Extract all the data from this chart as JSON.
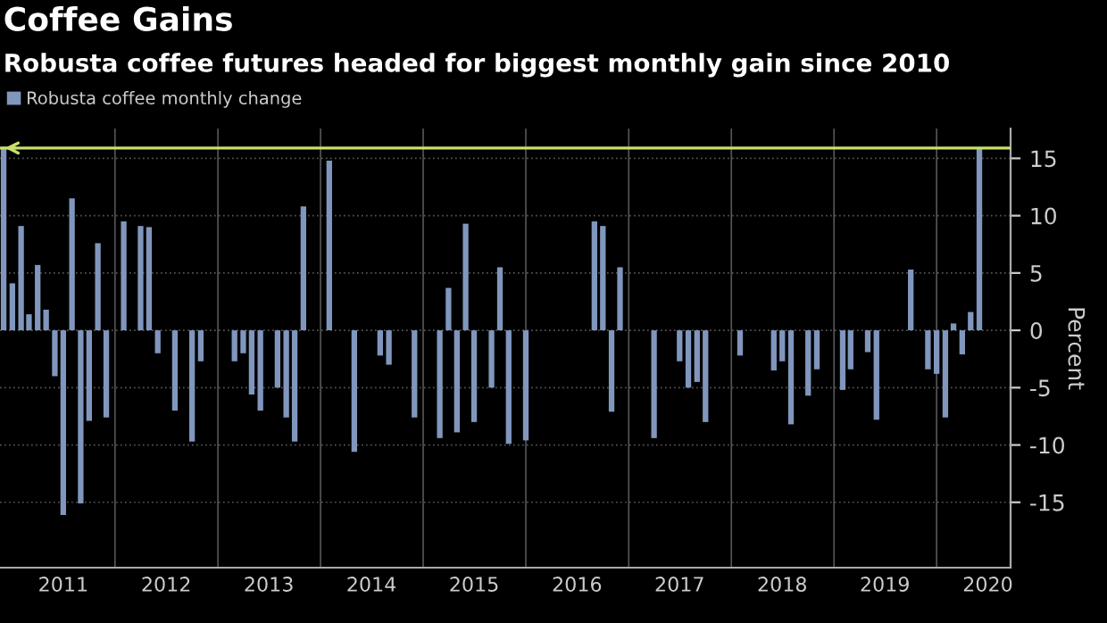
{
  "chart_data": {
    "type": "bar",
    "title": "Coffee Gains",
    "subtitle": "Robusta coffee futures headed for biggest monthly gain since 2010",
    "ylabel": "Percent",
    "x": [
      "2010-12",
      "2011-01",
      "2011-02",
      "2011-03",
      "2011-04",
      "2011-05",
      "2011-06",
      "2011-07",
      "2011-08",
      "2011-09",
      "2011-10",
      "2011-11",
      "2011-12",
      "2012-01",
      "2012-02",
      "2012-03",
      "2012-04",
      "2012-05",
      "2012-06",
      "2012-07",
      "2012-08",
      "2012-09",
      "2012-10",
      "2012-11",
      "2012-12",
      "2013-01",
      "2013-02",
      "2013-03",
      "2013-04",
      "2013-05",
      "2013-06",
      "2013-07",
      "2013-08",
      "2013-09",
      "2013-10",
      "2013-11",
      "2013-12",
      "2014-01",
      "2014-02",
      "2014-03",
      "2014-04",
      "2014-05",
      "2014-06",
      "2014-07",
      "2014-08",
      "2014-09",
      "2014-10",
      "2014-11",
      "2014-12",
      "2015-01",
      "2015-02",
      "2015-03",
      "2015-04",
      "2015-05",
      "2015-06",
      "2015-07",
      "2015-08",
      "2015-09",
      "2015-10",
      "2015-11",
      "2015-12",
      "2016-01",
      "2016-02",
      "2016-03",
      "2016-04",
      "2016-05",
      "2016-06",
      "2016-07",
      "2016-08",
      "2016-09",
      "2016-10",
      "2016-11",
      "2016-12",
      "2017-01",
      "2017-02",
      "2017-03",
      "2017-04",
      "2017-05",
      "2017-06",
      "2017-07",
      "2017-08",
      "2017-09",
      "2017-10",
      "2017-11",
      "2017-12",
      "2018-01",
      "2018-02",
      "2018-03",
      "2018-04",
      "2018-05",
      "2018-06",
      "2018-07",
      "2018-08",
      "2018-09",
      "2018-10",
      "2018-11",
      "2018-12",
      "2019-01",
      "2019-02",
      "2019-03",
      "2019-04",
      "2019-05",
      "2019-06",
      "2019-07",
      "2019-08",
      "2019-09",
      "2019-10",
      "2019-11",
      "2019-12",
      "2020-01",
      "2020-02",
      "2020-03",
      "2020-04",
      "2020-05",
      "2020-06"
    ],
    "series": [
      {
        "name": "Robusta coffee monthly change",
        "color": "#8096bd",
        "values": [
          16,
          4.1,
          9.1,
          1.4,
          5.7,
          1.8,
          -4.0,
          -16.1,
          11.5,
          -15.1,
          -7.9,
          7.6,
          -7.6,
          null,
          9.5,
          null,
          9.1,
          9.0,
          -2.0,
          null,
          -7.0,
          null,
          -9.7,
          -2.7,
          null,
          null,
          null,
          -2.7,
          -2.0,
          -5.6,
          -7.0,
          null,
          -5.0,
          -7.6,
          -9.7,
          10.8,
          null,
          null,
          14.8,
          null,
          null,
          -10.6,
          null,
          null,
          -2.2,
          -3.0,
          null,
          null,
          -7.6,
          null,
          null,
          -9.4,
          3.7,
          -8.9,
          9.3,
          -8.0,
          null,
          -5.0,
          5.5,
          -9.9,
          null,
          -9.6,
          null,
          null,
          null,
          null,
          null,
          null,
          null,
          9.5,
          9.1,
          -7.1,
          5.5,
          null,
          null,
          null,
          -9.4,
          null,
          null,
          -2.7,
          -5.0,
          -4.5,
          -8.0,
          null,
          null,
          null,
          -2.2,
          null,
          null,
          null,
          -3.5,
          -2.7,
          -8.2,
          null,
          -5.7,
          -3.4,
          null,
          null,
          -5.2,
          -3.4,
          null,
          -1.9,
          -7.8,
          null,
          null,
          null,
          5.3,
          null,
          -3.4,
          -3.8,
          -7.6,
          0.6,
          -2.1,
          1.6,
          15.9
        ]
      }
    ],
    "xlim": [
      "2010-11-18",
      "2020-09-20"
    ],
    "xticks": [
      {
        "value": "2011-07-01",
        "label": "2011"
      },
      {
        "value": "2012-01-01",
        "label": null
      },
      {
        "value": "2012-07-01",
        "label": "2012"
      },
      {
        "value": "2013-01-01",
        "label": null
      },
      {
        "value": "2013-07-01",
        "label": "2013"
      },
      {
        "value": "2014-01-01",
        "label": null
      },
      {
        "value": "2014-07-01",
        "label": "2014"
      },
      {
        "value": "2015-01-01",
        "label": null
      },
      {
        "value": "2015-07-01",
        "label": "2015"
      },
      {
        "value": "2016-01-01",
        "label": null
      },
      {
        "value": "2016-07-01",
        "label": "2016"
      },
      {
        "value": "2017-01-01",
        "label": null
      },
      {
        "value": "2017-07-01",
        "label": "2017"
      },
      {
        "value": "2018-01-01",
        "label": null
      },
      {
        "value": "2018-07-01",
        "label": "2018"
      },
      {
        "value": "2019-01-01",
        "label": null
      },
      {
        "value": "2019-07-01",
        "label": "2019"
      },
      {
        "value": "2020-01-01",
        "label": null
      },
      {
        "value": "2020-07-01",
        "label": "2020"
      }
    ],
    "ylim": [
      -20.7,
      17.6
    ],
    "yticks": [
      -15,
      -10,
      -5,
      0,
      5,
      10,
      15
    ],
    "ref_lines": [
      {
        "axis": "y",
        "value": 15.9,
        "label": null,
        "color": "#c8e06a"
      }
    ],
    "grid": true,
    "legend": "top left"
  }
}
